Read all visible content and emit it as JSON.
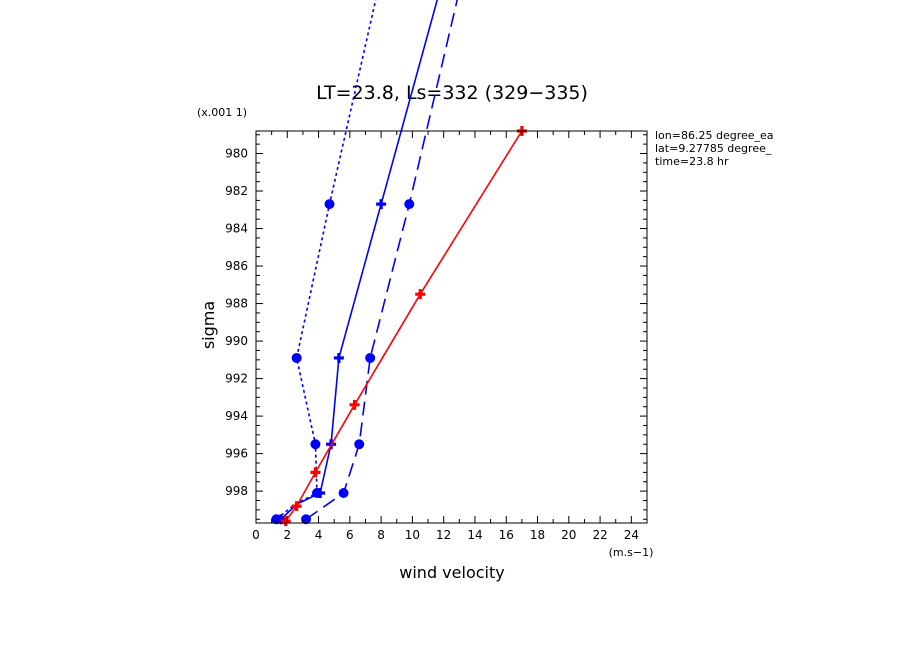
{
  "chart_data": {
    "type": "line",
    "title": "LT=23.8, Ls=332 (329−335)",
    "xlabel": "wind velocity",
    "ylabel": "sigma",
    "x_units": "(m.s−1)",
    "y_units": "(x.001 1)",
    "xlim": [
      0,
      25
    ],
    "ylim": [
      999.7,
      978.8
    ],
    "x_ticks": [
      0,
      2,
      4,
      6,
      8,
      10,
      12,
      14,
      16,
      18,
      20,
      22,
      24
    ],
    "y_ticks": [
      980,
      982,
      984,
      986,
      988,
      990,
      992,
      994,
      996,
      998
    ],
    "grid": false,
    "annotations": [
      "lon=86.25 degree_ea",
      "lat=9.27785 degree_",
      "time=23.8 hr"
    ],
    "series": [
      {
        "color": "#0000ff",
        "linestyle": "dotted",
        "marker": "circle",
        "points": [
          [
            1.3,
            999.5
          ],
          [
            2.5,
            998.7
          ],
          [
            3.9,
            998.1
          ],
          [
            3.8,
            995.5
          ],
          [
            2.6,
            990.9
          ],
          [
            4.7,
            982.7
          ],
          [
            9.5,
            965.0
          ]
        ],
        "markers": [
          [
            1.3,
            999.5
          ],
          [
            3.9,
            998.1
          ],
          [
            3.8,
            995.5
          ],
          [
            2.6,
            990.9
          ],
          [
            4.7,
            982.7
          ]
        ]
      },
      {
        "color": "#0000ff",
        "linestyle": "solid",
        "marker": "plus",
        "points": [
          [
            1.6,
            999.5
          ],
          [
            2.6,
            998.7
          ],
          [
            4.1,
            998.1
          ],
          [
            4.8,
            995.5
          ],
          [
            5.3,
            990.9
          ],
          [
            8.0,
            982.7
          ],
          [
            13.5,
            966.0
          ]
        ],
        "markers": [
          [
            1.6,
            999.5
          ],
          [
            4.1,
            998.1
          ],
          [
            4.8,
            995.5
          ],
          [
            5.3,
            990.9
          ],
          [
            8.0,
            982.7
          ]
        ]
      },
      {
        "color": "#0000ff",
        "linestyle": "dashed",
        "marker": "circle",
        "points": [
          [
            3.2,
            999.5
          ],
          [
            5.6,
            998.1
          ],
          [
            6.6,
            995.5
          ],
          [
            7.3,
            990.9
          ],
          [
            9.8,
            982.7
          ],
          [
            14.5,
            966.0
          ]
        ],
        "markers": [
          [
            3.2,
            999.5
          ],
          [
            5.6,
            998.1
          ],
          [
            6.6,
            995.5
          ],
          [
            7.3,
            990.9
          ],
          [
            9.8,
            982.7
          ]
        ]
      },
      {
        "color": "#ff0000",
        "linestyle": "solid",
        "marker": "plus",
        "points": [
          [
            1.9,
            999.6
          ],
          [
            2.6,
            998.8
          ],
          [
            3.8,
            997.0
          ],
          [
            6.3,
            993.4
          ],
          [
            10.5,
            987.5
          ],
          [
            17.0,
            978.8
          ]
        ],
        "markers": [
          [
            1.9,
            999.6
          ],
          [
            2.6,
            998.8
          ],
          [
            3.8,
            997.0
          ],
          [
            6.3,
            993.4
          ],
          [
            10.5,
            987.5
          ],
          [
            17.0,
            978.8
          ]
        ]
      }
    ]
  }
}
